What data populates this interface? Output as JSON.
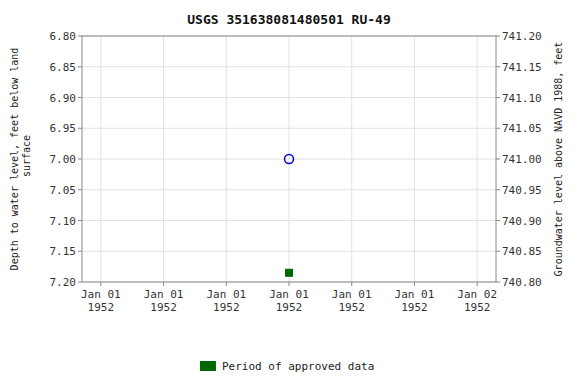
{
  "chart_data": {
    "type": "scatter",
    "title": "USGS 351638081480501 RU-49",
    "ylabel": "Depth to water level, feet below land\n surface",
    "y2label": "Groundwater level above NAVD 1988, feet",
    "categories": [
      "Jan 01\n1952",
      "Jan 01\n1952",
      "Jan 01\n1952",
      "Jan 01\n1952",
      "Jan 01\n1952",
      "Jan 01\n1952",
      "Jan 02\n1952"
    ],
    "series": [
      {
        "color": "#0000cc",
        "marker": "open-circle",
        "values": [
          null,
          null,
          null,
          7.0,
          null,
          null,
          null
        ]
      },
      {
        "name": "Period of approved data",
        "color": "#006600",
        "marker": "square",
        "values": [
          null,
          null,
          null,
          7.185,
          null,
          null,
          null
        ]
      }
    ],
    "ylim": [
      7.2,
      6.8
    ],
    "yticks": [
      {
        "value": 6.8,
        "label": "6.80"
      },
      {
        "value": 6.85,
        "label": "6.85"
      },
      {
        "value": 6.9,
        "label": "6.90"
      },
      {
        "value": 6.95,
        "label": "6.95"
      },
      {
        "value": 7.0,
        "label": "7.00"
      },
      {
        "value": 7.05,
        "label": "7.05"
      },
      {
        "value": 7.1,
        "label": "7.10"
      },
      {
        "value": 7.15,
        "label": "7.15"
      },
      {
        "value": 7.2,
        "label": "7.20"
      }
    ],
    "y2lim": [
      740.8,
      741.2
    ],
    "y2ticks": [
      {
        "value": 740.8,
        "label": "740.80"
      },
      {
        "value": 740.85,
        "label": "740.85"
      },
      {
        "value": 740.9,
        "label": "740.90"
      },
      {
        "value": 740.95,
        "label": "740.95"
      },
      {
        "value": 741.0,
        "label": "741.00"
      },
      {
        "value": 741.05,
        "label": "741.05"
      },
      {
        "value": 741.1,
        "label": "741.10"
      },
      {
        "value": 741.15,
        "label": "741.15"
      },
      {
        "value": 741.2,
        "label": "741.20"
      }
    ],
    "grid": true,
    "legend": "bottom"
  }
}
